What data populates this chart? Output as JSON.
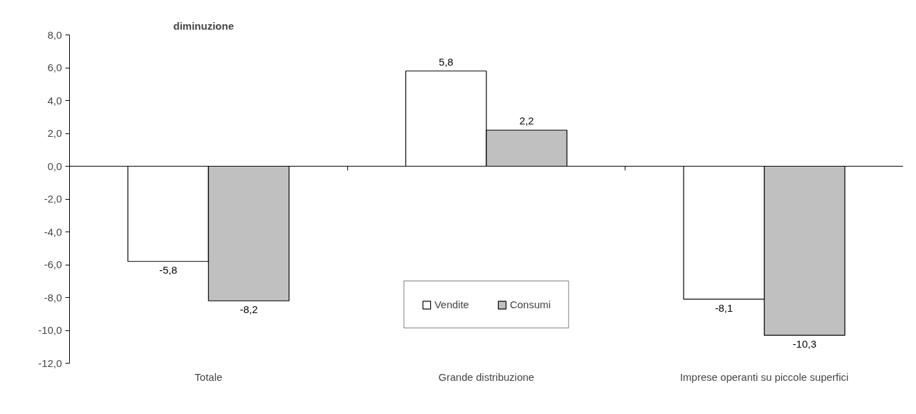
{
  "chart_data": {
    "type": "bar",
    "title": "diminuzione",
    "categories": [
      "Totale",
      "Grande distribuzione",
      "Imprese operanti su piccole superfici"
    ],
    "series": [
      {
        "name": "Vendite",
        "color": "#ffffff",
        "values": [
          -5.8,
          5.8,
          -8.1
        ],
        "value_labels": [
          "-5,8",
          "5,8",
          "-8,1"
        ]
      },
      {
        "name": "Consumi",
        "color": "#c0c0c0",
        "values": [
          -8.2,
          2.2,
          -10.3
        ],
        "value_labels": [
          "-8,2",
          "2,2",
          "-10,3"
        ]
      }
    ],
    "ylim": [
      -12,
      8
    ],
    "yticks": [
      {
        "value": -12,
        "label": "-12,0"
      },
      {
        "value": -10,
        "label": "-10,0"
      },
      {
        "value": -8,
        "label": "-8,0"
      },
      {
        "value": -6,
        "label": "-6,0"
      },
      {
        "value": -4,
        "label": "-4,0"
      },
      {
        "value": -2,
        "label": "-2,0"
      },
      {
        "value": 0,
        "label": "0,0"
      },
      {
        "value": 2,
        "label": "2,0"
      },
      {
        "value": 4,
        "label": "4,0"
      },
      {
        "value": 6,
        "label": "6,0"
      },
      {
        "value": 8,
        "label": "8,0"
      }
    ],
    "legend": "bottom"
  }
}
